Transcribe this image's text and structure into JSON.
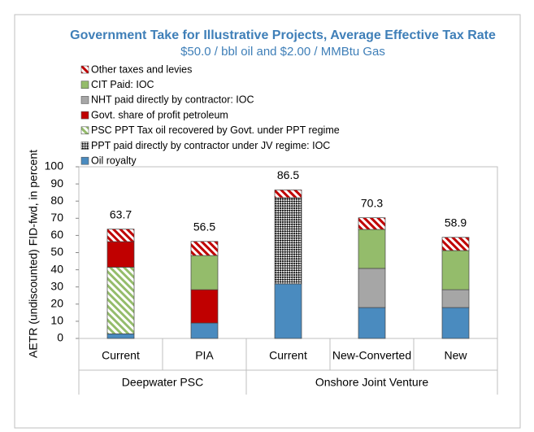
{
  "chart_data": {
    "type": "stacked_bar",
    "title": "Government Take for Illustrative Projects, Average Effective Tax Rate",
    "subtitle": "$50.0 / bbl oil and $2.00 / MMBtu Gas",
    "y_label": "AETR (undiscounted) FID-fwd, in percent",
    "groups": [
      {
        "name": "Deepwater PSC",
        "categories": [
          "Current",
          "PIA"
        ]
      },
      {
        "name": "Onshore Joint Venture",
        "categories": [
          "Current",
          "New-Converted",
          "New"
        ]
      }
    ],
    "series": [
      {
        "name": "Oil royalty",
        "color": "#4a8bbf",
        "pattern": "solid",
        "values": [
          2.7,
          9.0,
          31.8,
          18.0,
          18.0
        ]
      },
      {
        "name": "PPT paid directly by contractor under JV regime: IOC",
        "color": "#000000",
        "pattern": "dots",
        "values": [
          null,
          null,
          50.2,
          null,
          null
        ]
      },
      {
        "name": "PSC PPT Tax oil recovered by Govt. under PPT regime",
        "color": "#94bc6b",
        "pattern": "hatch",
        "values": [
          38.8,
          null,
          null,
          null,
          null
        ]
      },
      {
        "name": "Govt. share of profit petroleum",
        "color": "#c00000",
        "pattern": "solid",
        "values": [
          14.9,
          19.4,
          null,
          null,
          null
        ]
      },
      {
        "name": "NHT paid directly by contractor: IOC",
        "color": "#a6a6a6",
        "pattern": "solid",
        "values": [
          null,
          null,
          null,
          22.8,
          10.4
        ]
      },
      {
        "name": "CIT Paid: IOC",
        "color": "#94bc6b",
        "pattern": "solid",
        "values": [
          null,
          19.9,
          null,
          22.7,
          22.8
        ]
      },
      {
        "name": "Other taxes and levies",
        "color": "#c00000",
        "pattern": "hatch",
        "values": [
          7.3,
          8.2,
          4.5,
          6.8,
          7.7
        ]
      }
    ],
    "totals": [
      63.7,
      56.5,
      86.5,
      70.3,
      58.9
    ],
    "ylim": [
      0,
      100
    ],
    "yticks": [
      0,
      10,
      20,
      30,
      40,
      50,
      60,
      70,
      80,
      90,
      100
    ]
  }
}
